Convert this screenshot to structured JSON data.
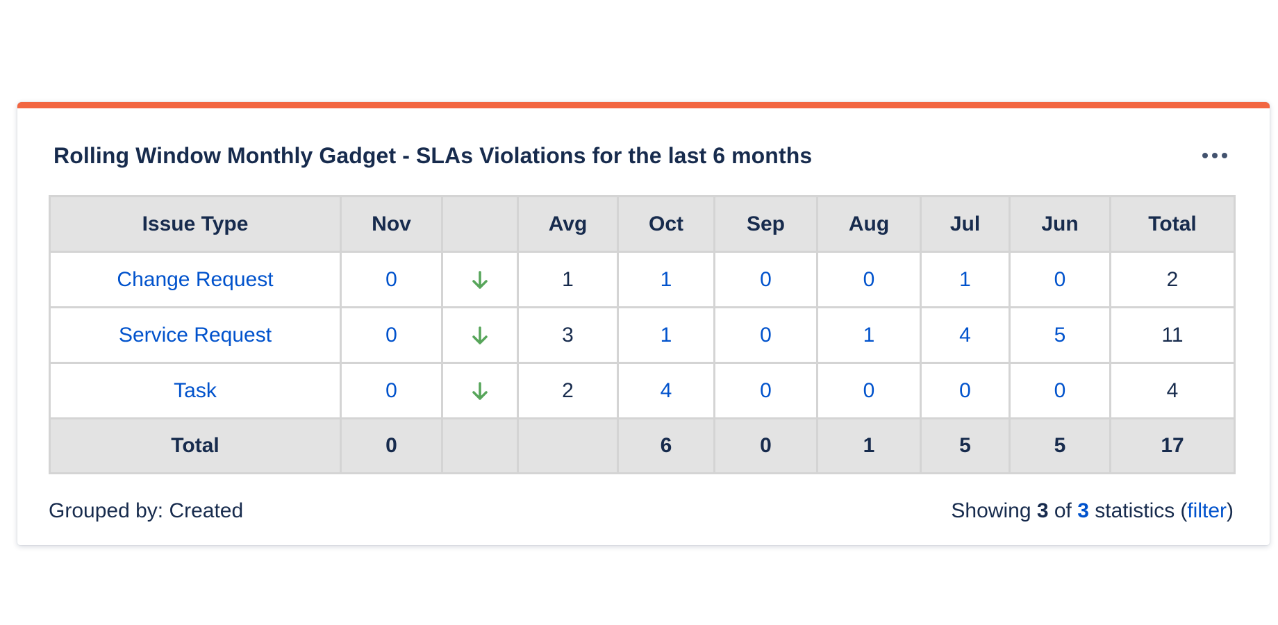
{
  "colors": {
    "accent_bar": "#f26641",
    "link": "#0052cc",
    "text": "#172b4d",
    "trend_down": "#57a55a",
    "header_bg": "#e3e3e3"
  },
  "gadget": {
    "title": "Rolling Window Monthly Gadget - SLAs Violations for the last 6 months",
    "more_icon": "more-horizontal-icon"
  },
  "table": {
    "headers": {
      "issue_type": "Issue Type",
      "nov": "Nov",
      "trend": "",
      "avg": "Avg",
      "oct": "Oct",
      "sep": "Sep",
      "aug": "Aug",
      "jul": "Jul",
      "jun": "Jun",
      "total": "Total"
    },
    "rows": [
      {
        "issue_type": "Change Request",
        "nov": "0",
        "trend": "down-arrow-icon",
        "avg": "1",
        "oct": "1",
        "sep": "0",
        "aug": "0",
        "jul": "1",
        "jun": "0",
        "total": "2"
      },
      {
        "issue_type": "Service Request",
        "nov": "0",
        "trend": "down-arrow-icon",
        "avg": "3",
        "oct": "1",
        "sep": "0",
        "aug": "1",
        "jul": "4",
        "jun": "5",
        "total": "11"
      },
      {
        "issue_type": "Task",
        "nov": "0",
        "trend": "down-arrow-icon",
        "avg": "2",
        "oct": "4",
        "sep": "0",
        "aug": "0",
        "jul": "0",
        "jun": "0",
        "total": "4"
      }
    ],
    "totals": {
      "label": "Total",
      "nov": "0",
      "trend": "",
      "avg": "",
      "oct": "6",
      "sep": "0",
      "aug": "1",
      "jul": "5",
      "jun": "5",
      "total": "17"
    }
  },
  "footer": {
    "grouped_by": "Grouped by: Created",
    "showing_prefix": "Showing",
    "shown_count": "3",
    "of_word": "of",
    "total_count": "3",
    "statistics_word": "statistics",
    "open_paren": "(",
    "filter_link": "filter",
    "close_paren": ")"
  }
}
